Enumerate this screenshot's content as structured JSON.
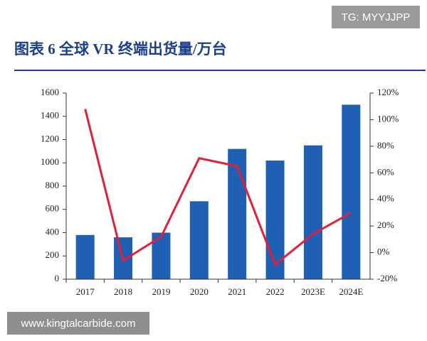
{
  "watermarks": [
    "TG: MYYJJPP",
    "www.kingtalcarbide.com"
  ],
  "chart_data": {
    "type": "combo",
    "title": "图表 6   全球 VR 终端出货量/万台",
    "categories": [
      "2017",
      "2018",
      "2019",
      "2020",
      "2021",
      "2022",
      "2023E",
      "2024E"
    ],
    "series": [
      {
        "type": "bar",
        "color": "#1f5fb4",
        "values": [
          380,
          360,
          400,
          670,
          1120,
          1020,
          1150,
          1500
        ]
      },
      {
        "type": "line",
        "color": "#e0203a",
        "axis": "y2",
        "values": [
          108,
          -6,
          12,
          71,
          65,
          -9,
          14,
          30
        ]
      }
    ],
    "ylim": [
      0,
      1600
    ],
    "yticks": [
      0,
      200,
      400,
      600,
      800,
      1000,
      1200,
      1400,
      1600
    ],
    "y2lim": [
      -20,
      120
    ],
    "y2ticks": [
      {
        "value": -20,
        "label": "-20%"
      },
      {
        "value": 0,
        "label": "0%"
      },
      {
        "value": 20,
        "label": "20%"
      },
      {
        "value": 40,
        "label": "40%"
      },
      {
        "value": 60,
        "label": "60%"
      },
      {
        "value": 80,
        "label": "80%"
      },
      {
        "value": 100,
        "label": "100%"
      },
      {
        "value": 120,
        "label": "120%"
      }
    ]
  }
}
